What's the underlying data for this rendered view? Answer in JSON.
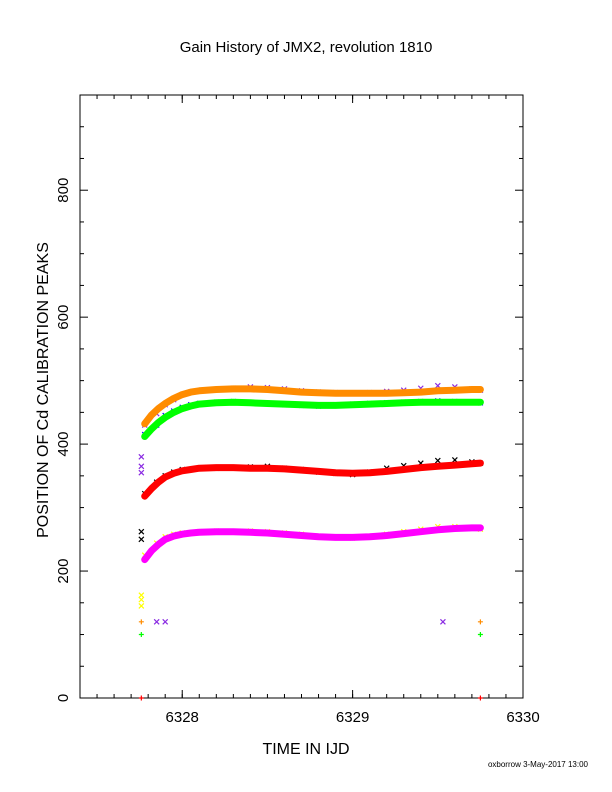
{
  "chart_data": {
    "type": "scatter",
    "title": "Gain History of JMX2, revolution 1810",
    "xlabel": "TIME IN IJD",
    "ylabel": "POSITION OF Cd CALIBRATION PEAKS",
    "xlim": [
      6327.4,
      6330.0
    ],
    "ylim": [
      0,
      950
    ],
    "x_ticks": [
      6328,
      6329,
      6330
    ],
    "x_tick_labels": [
      "6328",
      "6329",
      "6330"
    ],
    "y_ticks": [
      0,
      200,
      400,
      600,
      800
    ],
    "y_tick_labels": [
      "0",
      "200",
      "400",
      "600",
      "800"
    ],
    "grid": false,
    "legend": "none",
    "footer_text": "oxborrow  3-May-2017 13:00",
    "series": [
      {
        "color": "#8a2be2",
        "marker": "x",
        "x": [
          6327.78,
          6327.85,
          6327.9,
          6327.95,
          6328.0,
          6328.05,
          6328.1,
          6328.2,
          6328.3,
          6328.4,
          6328.5,
          6328.6,
          6328.7,
          6328.8,
          6328.9,
          6329.0,
          6329.1,
          6329.2,
          6329.3,
          6329.4,
          6329.5,
          6329.6,
          6329.7,
          6329.75
        ],
        "y": [
          430,
          448,
          462,
          470,
          478,
          482,
          484,
          486,
          488,
          490,
          489,
          487,
          484,
          482,
          481,
          480,
          481,
          483,
          485,
          488,
          492,
          490,
          487,
          485
        ]
      },
      {
        "color": "#0000ff",
        "marker": "x",
        "x": [
          6327.78,
          6327.85,
          6327.9,
          6327.95,
          6328.0,
          6328.05,
          6328.1,
          6328.2,
          6328.3,
          6328.4,
          6328.5,
          6328.6,
          6328.7,
          6328.8,
          6328.9,
          6329.0,
          6329.1,
          6329.2,
          6329.3,
          6329.4,
          6329.5,
          6329.6,
          6329.7,
          6329.75
        ],
        "y": [
          415,
          430,
          445,
          452,
          458,
          462,
          464,
          466,
          467,
          465,
          464,
          462,
          461,
          460,
          462,
          463,
          464,
          465,
          466,
          467,
          468,
          467,
          466,
          465
        ]
      },
      {
        "color": "#000000",
        "marker": "x",
        "x": [
          6327.78,
          6327.85,
          6327.9,
          6327.95,
          6328.0,
          6328.1,
          6328.2,
          6328.3,
          6328.4,
          6328.5,
          6328.6,
          6328.7,
          6328.8,
          6328.9,
          6329.0,
          6329.1,
          6329.2,
          6329.3,
          6329.4,
          6329.5,
          6329.6,
          6329.7,
          6329.75
        ],
        "y": [
          322,
          340,
          350,
          356,
          360,
          362,
          362,
          363,
          364,
          365,
          362,
          360,
          356,
          354,
          352,
          356,
          362,
          366,
          370,
          374,
          375,
          372,
          370
        ]
      },
      {
        "color": "#ffff00",
        "marker": "x",
        "x": [
          6327.78,
          6327.85,
          6327.9,
          6327.95,
          6328.0,
          6328.1,
          6328.2,
          6328.3,
          6328.4,
          6328.5,
          6328.6,
          6328.7,
          6328.8,
          6328.9,
          6329.0,
          6329.1,
          6329.2,
          6329.3,
          6329.4,
          6329.5,
          6329.6,
          6329.7,
          6329.75
        ],
        "y": [
          225,
          244,
          254,
          258,
          260,
          262,
          263,
          262,
          263,
          262,
          260,
          258,
          255,
          253,
          252,
          254,
          258,
          262,
          266,
          270,
          270,
          268,
          266
        ]
      },
      {
        "color": "#ff8c00",
        "marker": "line",
        "x": [
          6327.78,
          6327.82,
          6327.86,
          6327.9,
          6327.95,
          6328.0,
          6328.05,
          6328.1,
          6328.2,
          6328.3,
          6328.4,
          6328.5,
          6328.6,
          6328.7,
          6328.8,
          6328.9,
          6329.0,
          6329.1,
          6329.2,
          6329.3,
          6329.4,
          6329.5,
          6329.6,
          6329.7,
          6329.75
        ],
        "y": [
          432,
          446,
          456,
          464,
          472,
          478,
          482,
          484,
          486,
          487,
          487,
          486,
          484,
          482,
          481,
          480,
          480,
          480,
          480,
          481,
          482,
          484,
          485,
          486,
          486
        ]
      },
      {
        "color": "#00ff00",
        "marker": "line",
        "x": [
          6327.78,
          6327.82,
          6327.86,
          6327.9,
          6327.95,
          6328.0,
          6328.05,
          6328.1,
          6328.2,
          6328.3,
          6328.4,
          6328.5,
          6328.6,
          6328.7,
          6328.8,
          6328.9,
          6329.0,
          6329.1,
          6329.2,
          6329.3,
          6329.4,
          6329.5,
          6329.6,
          6329.7,
          6329.75
        ],
        "y": [
          412,
          424,
          434,
          442,
          450,
          456,
          460,
          463,
          465,
          466,
          465,
          464,
          463,
          462,
          461,
          461,
          462,
          463,
          464,
          465,
          466,
          466,
          466,
          466,
          466
        ]
      },
      {
        "color": "#ff0000",
        "marker": "line",
        "x": [
          6327.78,
          6327.82,
          6327.86,
          6327.9,
          6327.95,
          6328.0,
          6328.05,
          6328.1,
          6328.2,
          6328.3,
          6328.4,
          6328.5,
          6328.6,
          6328.7,
          6328.8,
          6328.9,
          6329.0,
          6329.1,
          6329.2,
          6329.3,
          6329.4,
          6329.5,
          6329.6,
          6329.7,
          6329.75
        ],
        "y": [
          318,
          330,
          340,
          348,
          354,
          358,
          360,
          362,
          363,
          363,
          362,
          362,
          361,
          359,
          357,
          355,
          354,
          355,
          357,
          360,
          363,
          365,
          367,
          369,
          370
        ]
      },
      {
        "color": "#ff00ff",
        "marker": "line",
        "x": [
          6327.78,
          6327.82,
          6327.86,
          6327.9,
          6327.95,
          6328.0,
          6328.05,
          6328.1,
          6328.2,
          6328.3,
          6328.4,
          6328.5,
          6328.6,
          6328.7,
          6328.8,
          6328.9,
          6329.0,
          6329.1,
          6329.2,
          6329.3,
          6329.4,
          6329.5,
          6329.6,
          6329.7,
          6329.75
        ],
        "y": [
          218,
          232,
          242,
          250,
          255,
          258,
          260,
          261,
          262,
          262,
          261,
          260,
          258,
          256,
          254,
          253,
          253,
          254,
          256,
          259,
          262,
          265,
          267,
          268,
          268
        ]
      },
      {
        "color": "#8a2be2",
        "marker": "x",
        "x": [
          6327.76,
          6327.76,
          6327.76,
          6327.85,
          6327.9,
          6329.53
        ],
        "y": [
          380,
          365,
          355,
          120,
          120,
          120
        ]
      },
      {
        "color": "#000000",
        "marker": "x",
        "x": [
          6327.76,
          6327.76
        ],
        "y": [
          262,
          250
        ]
      },
      {
        "color": "#ffff00",
        "marker": "x",
        "x": [
          6327.76,
          6327.76,
          6327.76
        ],
        "y": [
          162,
          155,
          145
        ]
      },
      {
        "color": "#ff8c00",
        "marker": "+",
        "x": [
          6327.76,
          6329.75
        ],
        "y": [
          120,
          120
        ]
      },
      {
        "color": "#00ff00",
        "marker": "+",
        "x": [
          6327.76,
          6329.75
        ],
        "y": [
          100,
          100
        ]
      },
      {
        "color": "#ff0000",
        "marker": "+",
        "x": [
          6327.76,
          6329.75
        ],
        "y": [
          0,
          0
        ]
      }
    ]
  }
}
